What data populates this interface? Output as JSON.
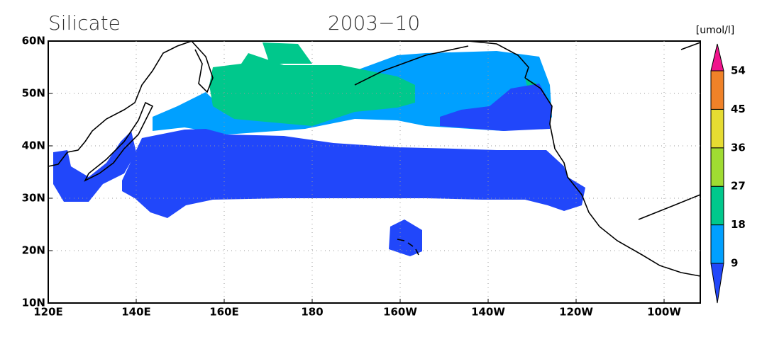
{
  "title": "Silicate",
  "date": "2003−10",
  "lat_labels": [
    "60N",
    "50N",
    "40N",
    "30N",
    "20N",
    "10N"
  ],
  "lon_labels": [
    "120E",
    "140E",
    "160E",
    "180",
    "160W",
    "140W",
    "120W",
    "100W"
  ],
  "colorbar": {
    "unit": "[umol/l]",
    "levels": [
      9,
      18,
      27,
      36,
      45,
      54
    ],
    "colors": [
      "#2147fa",
      "#00a0ff",
      "#00c88c",
      "#a0dc32",
      "#e6dc32",
      "#f08228",
      "#f0148c"
    ]
  }
}
